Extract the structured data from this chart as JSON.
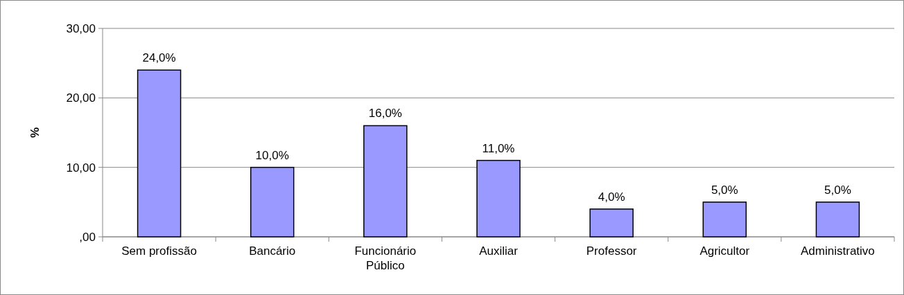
{
  "chart_data": {
    "type": "bar",
    "ylabel": "%",
    "categories": [
      "Sem profissão",
      "Bancário",
      "Funcionário Público",
      "Auxiliar",
      "Professor",
      "Agricultor",
      "Administrativo"
    ],
    "values": [
      24,
      10,
      16,
      11,
      4,
      5,
      5
    ],
    "value_labels": [
      "24,0%",
      "10,0%",
      "16,0%",
      "11,0%",
      "4,0%",
      "5,0%",
      "5,0%"
    ],
    "color": "#9999ff",
    "ylim": [
      0,
      30
    ],
    "yticks": [
      {
        "value": 0,
        "label": ",00"
      },
      {
        "value": 10,
        "label": "10,00"
      },
      {
        "value": 20,
        "label": "20,00"
      },
      {
        "value": 30,
        "label": "30,00"
      }
    ],
    "grid": "y"
  }
}
